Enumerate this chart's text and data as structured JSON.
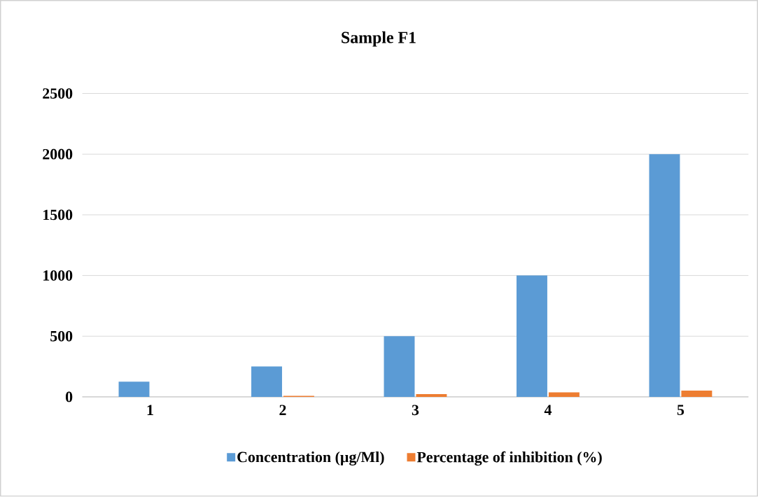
{
  "chart_data": {
    "type": "bar",
    "title": "Sample F1",
    "categories": [
      "1",
      "2",
      "3",
      "4",
      "5"
    ],
    "series": [
      {
        "name": "Concentration (µg/Ml)",
        "color": "#5b9bd5",
        "values": [
          125,
          250,
          500,
          1000,
          2000
        ]
      },
      {
        "name": "Percentage of inhibition (%)",
        "color": "#ed7d31",
        "values": [
          null,
          8,
          23,
          37,
          51
        ]
      }
    ],
    "ylim": [
      0,
      2500
    ],
    "yticks": [
      0,
      500,
      1000,
      1500,
      2000,
      2500
    ],
    "grid": "y",
    "legend": "bottom"
  }
}
